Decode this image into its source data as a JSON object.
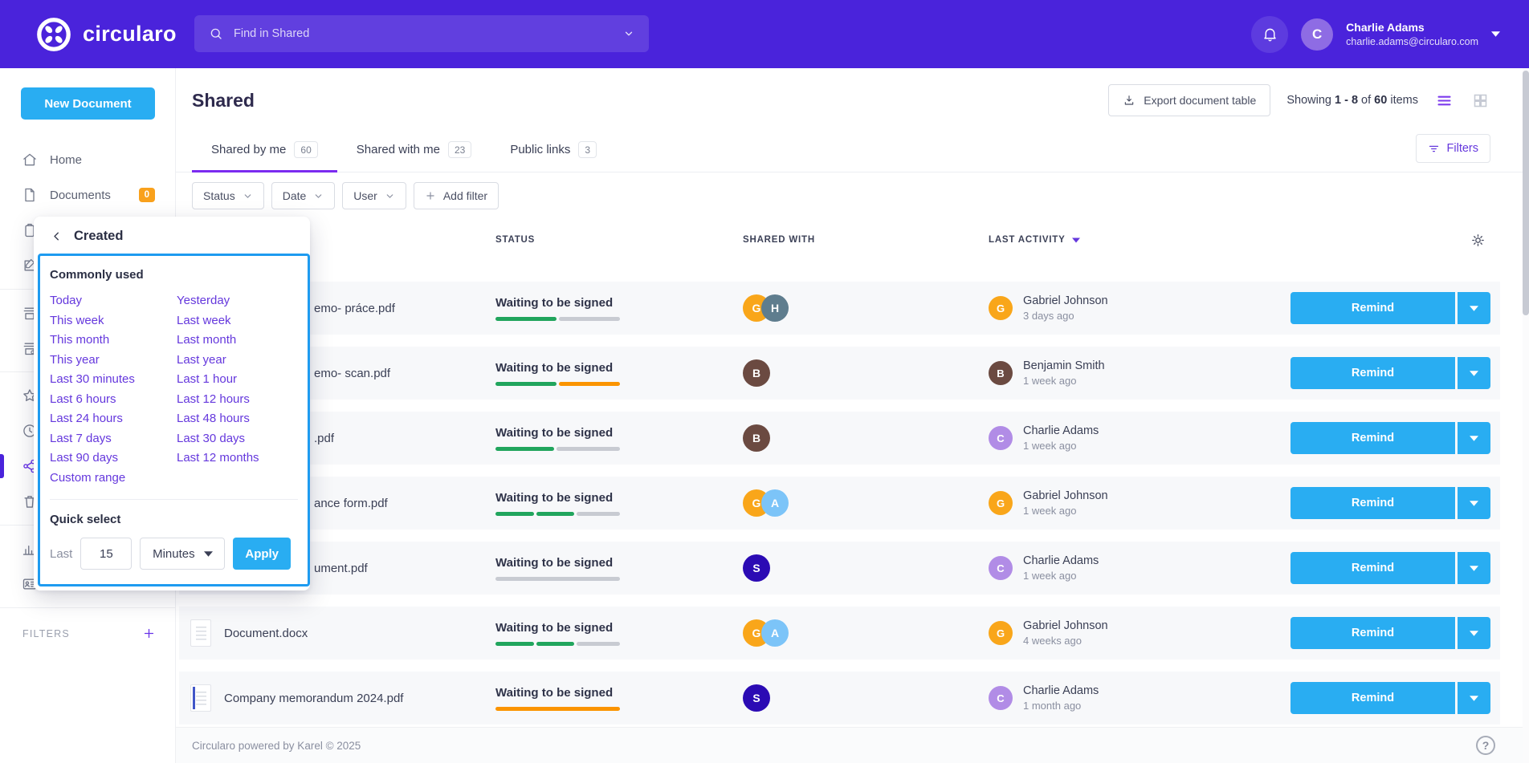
{
  "colors": {
    "brand_purple": "#4A23DB",
    "accent_blue": "#29ADF2",
    "focus_blue": "#1E9BF0",
    "link_purple": "#6538DD",
    "progress": {
      "green": "#21A55D",
      "orange": "#FB9400",
      "gray": "#C8CBD2"
    },
    "avatars": {
      "amber": "#F9A61A",
      "slate": "#5F7D8E",
      "brown": "#6B4A41",
      "sky": "#7CC4F8",
      "navy": "#2B0BB4",
      "lilac": "#B18CE6"
    }
  },
  "topbar": {
    "brand": "circularo",
    "search": {
      "placeholder": "Find in Shared"
    },
    "user": {
      "name": "Charlie Adams",
      "email": "charlie.adams@circularo.com",
      "initial": "C"
    }
  },
  "sidebar": {
    "new_document_label": "New Document",
    "nav": [
      {
        "icon": "home",
        "label": "Home"
      },
      {
        "icon": "document",
        "label": "Documents",
        "badge": "0"
      },
      {
        "icon": "clipboard"
      },
      {
        "icon": "edit"
      },
      {
        "divider": true
      },
      {
        "icon": "inbox"
      },
      {
        "icon": "inbox-at"
      },
      {
        "divider": true
      },
      {
        "icon": "star"
      },
      {
        "icon": "clock"
      },
      {
        "icon": "share",
        "active": true
      },
      {
        "icon": "trash"
      },
      {
        "divider": true
      },
      {
        "icon": "bar-chart"
      },
      {
        "icon": "contacts",
        "label": "Contacts"
      },
      {
        "divider": true
      }
    ],
    "filters_label": "FILTERS"
  },
  "page": {
    "title": "Shared",
    "export_label": "Export document table",
    "showing": {
      "prefix": "Showing",
      "range": "1 - 8",
      "of": "of",
      "total": "60",
      "suffix": "items"
    },
    "tabs": [
      {
        "label": "Shared by me",
        "count": "60",
        "active": true
      },
      {
        "label": "Shared with me",
        "count": "23",
        "active": false
      },
      {
        "label": "Public links",
        "count": "3",
        "active": false
      }
    ],
    "filters_button": "Filters",
    "filter_chips": [
      "Status",
      "Date",
      "User"
    ],
    "add_filter_label": "Add filter"
  },
  "date_popup": {
    "title": "Created",
    "commonly_used": "Commonly used",
    "options_col1": [
      "Today",
      "This week",
      "This month",
      "This year",
      "Last 30 minutes",
      "Last 6 hours",
      "Last 24 hours",
      "Last 7 days",
      "Last 90 days",
      "Custom range"
    ],
    "options_col2": [
      "Yesterday",
      "Last week",
      "Last month",
      "Last year",
      "Last 1 hour",
      "Last 12 hours",
      "Last 48 hours",
      "Last 30 days",
      "Last 12 months"
    ],
    "quick_select": "Quick select",
    "last_label": "Last",
    "amount_value": "15",
    "unit_value": "Minutes",
    "apply_label": "Apply"
  },
  "table": {
    "headers": {
      "status": "STATUS",
      "shared_with": "SHARED WITH",
      "last_activity": "LAST ACTIVITY"
    },
    "rows": [
      {
        "name": "emo- práce.pdf",
        "clipped": true,
        "status": "Waiting to be signed",
        "progress": [
          [
            "green",
            50
          ],
          [
            "gray",
            50
          ]
        ],
        "shared_with": [
          [
            "G",
            "amber"
          ],
          [
            "H",
            "slate"
          ]
        ],
        "activity": {
          "initial": "G",
          "color": "amber",
          "name": "Gabriel Johnson",
          "when": "3 days ago"
        },
        "action": "Remind"
      },
      {
        "name": "emo- scan.pdf",
        "clipped": true,
        "status": "Waiting to be signed",
        "progress": [
          [
            "green",
            50
          ],
          [
            "orange",
            50
          ]
        ],
        "shared_with": [
          [
            "B",
            "brown"
          ]
        ],
        "activity": {
          "initial": "B",
          "color": "brown",
          "name": "Benjamin Smith",
          "when": "1 week ago"
        },
        "action": "Remind"
      },
      {
        "name": ".pdf",
        "clipped": true,
        "status": "Waiting to be signed",
        "progress": [
          [
            "green",
            48
          ],
          [
            "gray",
            52
          ]
        ],
        "shared_with": [
          [
            "B",
            "brown"
          ]
        ],
        "activity": {
          "initial": "C",
          "color": "lilac",
          "name": "Charlie Adams",
          "when": "1 week ago"
        },
        "action": "Remind"
      },
      {
        "name": "ance form.pdf",
        "clipped": true,
        "status": "Waiting to be signed",
        "progress": [
          [
            "green",
            32
          ],
          [
            "green",
            32
          ],
          [
            "gray",
            36
          ]
        ],
        "shared_with": [
          [
            "G",
            "amber"
          ],
          [
            "A",
            "sky"
          ]
        ],
        "activity": {
          "initial": "G",
          "color": "amber",
          "name": "Gabriel Johnson",
          "when": "1 week ago"
        },
        "action": "Remind"
      },
      {
        "name": "ument.pdf",
        "clipped": true,
        "status": "Waiting to be signed",
        "progress": [
          [
            "gray",
            100
          ]
        ],
        "shared_with": [
          [
            "S",
            "navy"
          ]
        ],
        "activity": {
          "initial": "C",
          "color": "lilac",
          "name": "Charlie Adams",
          "when": "1 week ago"
        },
        "action": "Remind"
      },
      {
        "name": "Document.docx",
        "thumb": "doc",
        "status": "Waiting to be signed",
        "progress": [
          [
            "green",
            32
          ],
          [
            "green",
            32
          ],
          [
            "gray",
            36
          ]
        ],
        "shared_with": [
          [
            "G",
            "amber"
          ],
          [
            "A",
            "sky"
          ]
        ],
        "activity": {
          "initial": "G",
          "color": "amber",
          "name": "Gabriel Johnson",
          "when": "4 weeks ago"
        },
        "action": "Remind"
      },
      {
        "name": "Company memorandum 2024.pdf",
        "thumb": "pdf-blue",
        "status": "Waiting to be signed",
        "progress": [
          [
            "orange",
            100
          ]
        ],
        "shared_with": [
          [
            "S",
            "navy"
          ]
        ],
        "activity": {
          "initial": "C",
          "color": "lilac",
          "name": "Charlie Adams",
          "when": "1 month ago"
        },
        "action": "Remind"
      }
    ]
  },
  "footer": {
    "text": "Circularo powered by Karel © 2025"
  }
}
